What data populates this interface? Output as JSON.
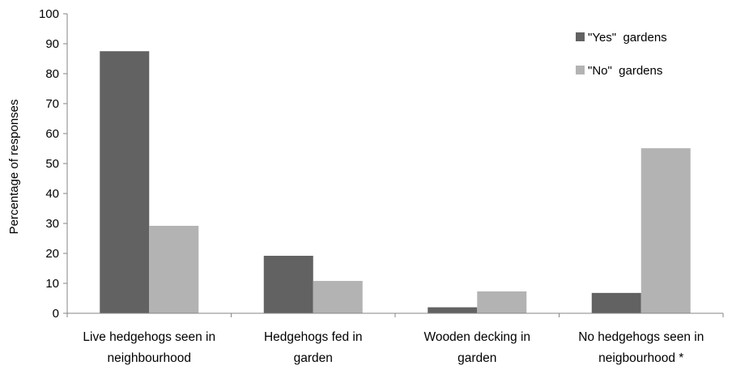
{
  "chart_data": {
    "type": "bar",
    "title": "",
    "xlabel": "",
    "ylabel": "Percentage of responses",
    "ylim": [
      0,
      100
    ],
    "yticks": [
      0,
      10,
      20,
      30,
      40,
      50,
      60,
      70,
      80,
      90,
      100
    ],
    "grid": false,
    "legend_position": "top-right",
    "categories": [
      [
        "Live hedgehogs seen in",
        "neighbourhood"
      ],
      [
        "Hedgehogs fed in",
        "garden"
      ],
      [
        "Wooden decking in",
        "garden"
      ],
      [
        "No hedgehogs seen in",
        "neigbourhood *"
      ]
    ],
    "series": [
      {
        "name": "\"Yes\"  gardens",
        "color": "#626262",
        "values": [
          87.5,
          19.2,
          2.0,
          6.8
        ]
      },
      {
        "name": "\"No\"  gardens",
        "color": "#b3b3b3",
        "values": [
          29.2,
          10.8,
          7.3,
          55.1
        ]
      }
    ]
  }
}
